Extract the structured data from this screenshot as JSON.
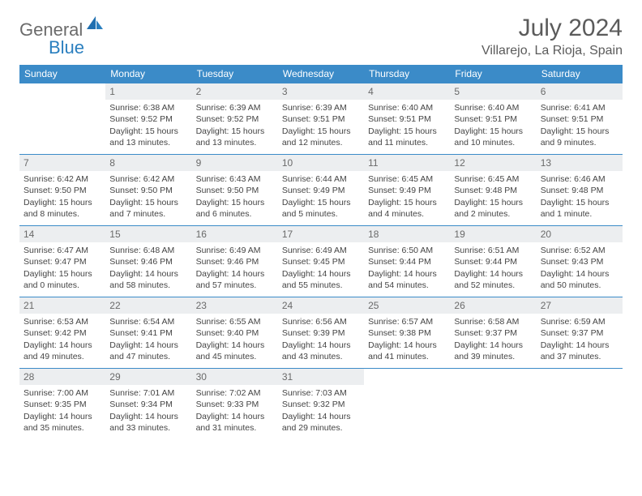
{
  "brand": {
    "part1": "General",
    "part2": "Blue"
  },
  "title": "July 2024",
  "location": "Villarejo, La Rioja, Spain",
  "colors": {
    "header_bg": "#3b8bc8",
    "header_text": "#ffffff",
    "daynum_bg": "#eceef0",
    "border": "#3b8bc8",
    "logo_gray": "#6b6b6b",
    "logo_blue": "#2a7fbf"
  },
  "weekdays": [
    "Sunday",
    "Monday",
    "Tuesday",
    "Wednesday",
    "Thursday",
    "Friday",
    "Saturday"
  ],
  "start_offset": 1,
  "days": [
    {
      "n": "1",
      "sunrise": "6:38 AM",
      "sunset": "9:52 PM",
      "daylight": "15 hours and 13 minutes."
    },
    {
      "n": "2",
      "sunrise": "6:39 AM",
      "sunset": "9:52 PM",
      "daylight": "15 hours and 13 minutes."
    },
    {
      "n": "3",
      "sunrise": "6:39 AM",
      "sunset": "9:51 PM",
      "daylight": "15 hours and 12 minutes."
    },
    {
      "n": "4",
      "sunrise": "6:40 AM",
      "sunset": "9:51 PM",
      "daylight": "15 hours and 11 minutes."
    },
    {
      "n": "5",
      "sunrise": "6:40 AM",
      "sunset": "9:51 PM",
      "daylight": "15 hours and 10 minutes."
    },
    {
      "n": "6",
      "sunrise": "6:41 AM",
      "sunset": "9:51 PM",
      "daylight": "15 hours and 9 minutes."
    },
    {
      "n": "7",
      "sunrise": "6:42 AM",
      "sunset": "9:50 PM",
      "daylight": "15 hours and 8 minutes."
    },
    {
      "n": "8",
      "sunrise": "6:42 AM",
      "sunset": "9:50 PM",
      "daylight": "15 hours and 7 minutes."
    },
    {
      "n": "9",
      "sunrise": "6:43 AM",
      "sunset": "9:50 PM",
      "daylight": "15 hours and 6 minutes."
    },
    {
      "n": "10",
      "sunrise": "6:44 AM",
      "sunset": "9:49 PM",
      "daylight": "15 hours and 5 minutes."
    },
    {
      "n": "11",
      "sunrise": "6:45 AM",
      "sunset": "9:49 PM",
      "daylight": "15 hours and 4 minutes."
    },
    {
      "n": "12",
      "sunrise": "6:45 AM",
      "sunset": "9:48 PM",
      "daylight": "15 hours and 2 minutes."
    },
    {
      "n": "13",
      "sunrise": "6:46 AM",
      "sunset": "9:48 PM",
      "daylight": "15 hours and 1 minute."
    },
    {
      "n": "14",
      "sunrise": "6:47 AM",
      "sunset": "9:47 PM",
      "daylight": "15 hours and 0 minutes."
    },
    {
      "n": "15",
      "sunrise": "6:48 AM",
      "sunset": "9:46 PM",
      "daylight": "14 hours and 58 minutes."
    },
    {
      "n": "16",
      "sunrise": "6:49 AM",
      "sunset": "9:46 PM",
      "daylight": "14 hours and 57 minutes."
    },
    {
      "n": "17",
      "sunrise": "6:49 AM",
      "sunset": "9:45 PM",
      "daylight": "14 hours and 55 minutes."
    },
    {
      "n": "18",
      "sunrise": "6:50 AM",
      "sunset": "9:44 PM",
      "daylight": "14 hours and 54 minutes."
    },
    {
      "n": "19",
      "sunrise": "6:51 AM",
      "sunset": "9:44 PM",
      "daylight": "14 hours and 52 minutes."
    },
    {
      "n": "20",
      "sunrise": "6:52 AM",
      "sunset": "9:43 PM",
      "daylight": "14 hours and 50 minutes."
    },
    {
      "n": "21",
      "sunrise": "6:53 AM",
      "sunset": "9:42 PM",
      "daylight": "14 hours and 49 minutes."
    },
    {
      "n": "22",
      "sunrise": "6:54 AM",
      "sunset": "9:41 PM",
      "daylight": "14 hours and 47 minutes."
    },
    {
      "n": "23",
      "sunrise": "6:55 AM",
      "sunset": "9:40 PM",
      "daylight": "14 hours and 45 minutes."
    },
    {
      "n": "24",
      "sunrise": "6:56 AM",
      "sunset": "9:39 PM",
      "daylight": "14 hours and 43 minutes."
    },
    {
      "n": "25",
      "sunrise": "6:57 AM",
      "sunset": "9:38 PM",
      "daylight": "14 hours and 41 minutes."
    },
    {
      "n": "26",
      "sunrise": "6:58 AM",
      "sunset": "9:37 PM",
      "daylight": "14 hours and 39 minutes."
    },
    {
      "n": "27",
      "sunrise": "6:59 AM",
      "sunset": "9:37 PM",
      "daylight": "14 hours and 37 minutes."
    },
    {
      "n": "28",
      "sunrise": "7:00 AM",
      "sunset": "9:35 PM",
      "daylight": "14 hours and 35 minutes."
    },
    {
      "n": "29",
      "sunrise": "7:01 AM",
      "sunset": "9:34 PM",
      "daylight": "14 hours and 33 minutes."
    },
    {
      "n": "30",
      "sunrise": "7:02 AM",
      "sunset": "9:33 PM",
      "daylight": "14 hours and 31 minutes."
    },
    {
      "n": "31",
      "sunrise": "7:03 AM",
      "sunset": "9:32 PM",
      "daylight": "14 hours and 29 minutes."
    }
  ]
}
